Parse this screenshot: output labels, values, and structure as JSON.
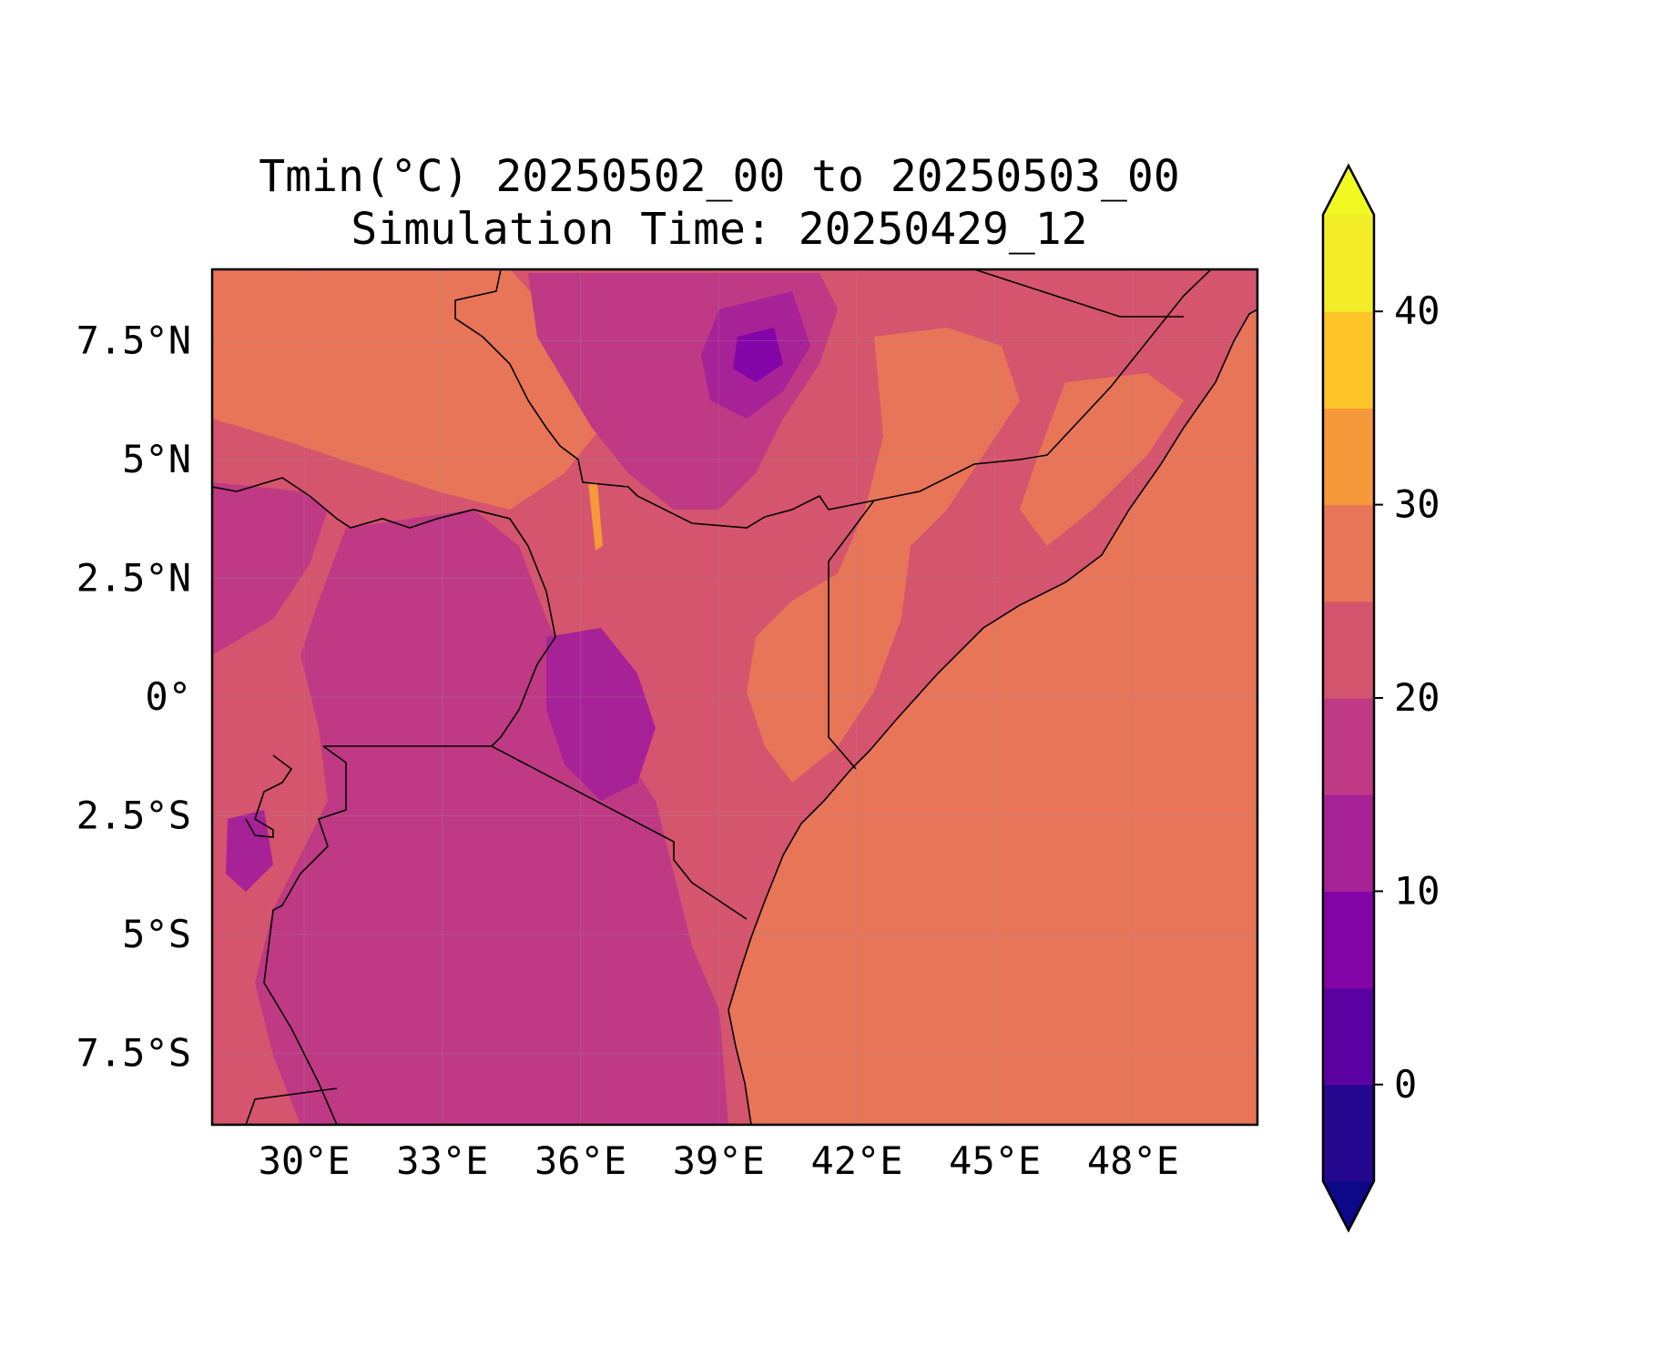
{
  "title": {
    "line1": "Tmin(°C) 20250502_00 to 20250503_00",
    "line2": "Simulation Time: 20250429_12"
  },
  "map": {
    "lon_range": [
      28,
      50.7
    ],
    "lat_range": [
      -9,
      9
    ],
    "x_ticks": [
      {
        "value": 30,
        "label": "30°E"
      },
      {
        "value": 33,
        "label": "33°E"
      },
      {
        "value": 36,
        "label": "36°E"
      },
      {
        "value": 39,
        "label": "39°E"
      },
      {
        "value": 42,
        "label": "42°E"
      },
      {
        "value": 45,
        "label": "45°E"
      },
      {
        "value": 48,
        "label": "48°E"
      }
    ],
    "y_ticks": [
      {
        "value": 7.5,
        "label": "7.5°N"
      },
      {
        "value": 5,
        "label": "5°N"
      },
      {
        "value": 2.5,
        "label": "2.5°N"
      },
      {
        "value": 0,
        "label": "0°"
      },
      {
        "value": -2.5,
        "label": "2.5°S"
      },
      {
        "value": -5,
        "label": "5°S"
      },
      {
        "value": -7.5,
        "label": "7.5°S"
      }
    ],
    "gridlines": true,
    "ocean_fill_color": "#e87558",
    "land_base_color": "#d5546e"
  },
  "colorbar": {
    "range": [
      -5,
      45
    ],
    "extend": "both",
    "levels": [
      -5,
      0,
      5,
      10,
      15,
      20,
      25,
      30,
      35,
      40,
      45
    ],
    "colors": [
      "#24078f",
      "#5c02a3",
      "#8305a7",
      "#a72197",
      "#bf3984",
      "#d5546e",
      "#e87558",
      "#f6993b",
      "#fdc527",
      "#f3ee27"
    ],
    "under_color": "#0d0887",
    "over_color": "#f0f921",
    "ticks": [
      {
        "value": 0,
        "label": "0"
      },
      {
        "value": 10,
        "label": "10"
      },
      {
        "value": 20,
        "label": "20"
      },
      {
        "value": 30,
        "label": "30"
      },
      {
        "value": 40,
        "label": "40"
      }
    ]
  }
}
